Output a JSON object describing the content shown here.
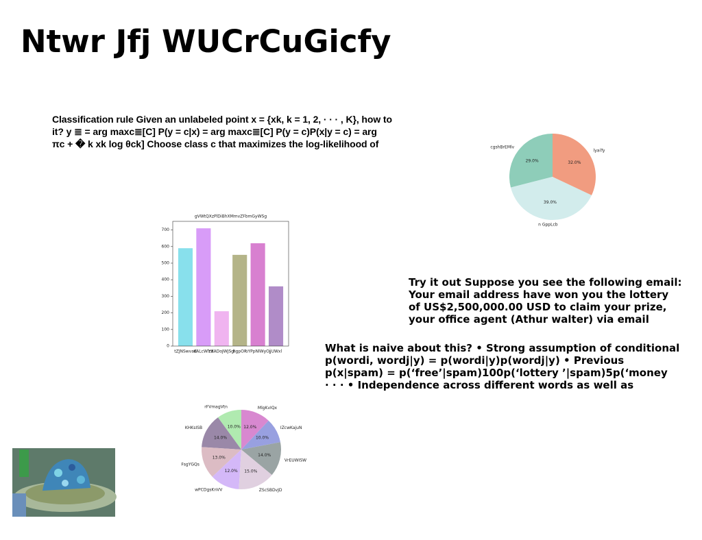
{
  "title": "Ntwr Jfj WUCrCuGicfy",
  "paragraphs": [
    {
      "lines": [
        "Classification rule Given an unlabeled point x = {xk, k = 1, 2, · · · , K}, how to",
        "it? y ≣ = arg maxc≣[C] P(y = c|x) = arg maxc≣[C] P(y = c)P(x|y = c) = arg",
        "πc + � k xk log θck] Choose class c that maximizes the log-likelihood of"
      ]
    },
    {
      "lines": [
        "Try it out Suppose you see the following email:",
        "Your email address have won you the lottery",
        "of US$2,500,000.00 USD to claim your prize,",
        "your office agent (Athur walter) via email"
      ]
    },
    {
      "lines": [
        "What is naive about this? • Strong assumption of conditional",
        "p(wordi, wordj|y) = p(wordi|y)p(wordj|y) • Previous",
        "p(x|spam) = p(‘free’|spam)100p(‘lottery ’|spam)5p(‘money",
        "· · · • Independence across different words as well as"
      ]
    }
  ],
  "chart_data": [
    {
      "type": "pie",
      "categories": [
        "cgshBrEMlv",
        "n GppLcb",
        "lyaiTy"
      ],
      "values": [
        29,
        39,
        32
      ],
      "value_labels": [
        "29.0%",
        "39.0%",
        "32.0%"
      ],
      "colors": [
        "#8ecdb9",
        "#d2ecec",
        "#f19c80"
      ]
    },
    {
      "type": "bar",
      "title": "gVWtQXzPlDiBhXMmvZFbmGyWSg",
      "categories": [
        "tZJNSwvad",
        "KALcWlzd",
        "YXADoJWJSgl",
        "hgpOP",
        "uYPpNlWyOj",
        "jUWxl"
      ],
      "values": [
        590,
        710,
        210,
        550,
        620,
        360
      ],
      "colors": [
        "#88e0ec",
        "#d89cf8",
        "#f0b4f0",
        "#b4b488",
        "#d880d0",
        "#b08cc8"
      ],
      "ylim": [
        0,
        752
      ],
      "yticks": [
        0,
        100,
        200,
        300,
        400,
        500,
        600,
        700
      ]
    },
    {
      "type": "pie",
      "categories": [
        "rFVmagVtn",
        "KHKsISB",
        "FsgYGQs",
        "wPCDgsKnVV",
        "ZScSBDvJD",
        "VrEUWISW",
        "IZcwKajuN",
        "MlgKvIQx"
      ],
      "values": [
        10,
        14,
        13,
        12,
        15,
        14,
        10,
        12
      ],
      "value_labels": [
        "10.0%",
        "14.0%",
        "13.0%",
        "12.0%",
        "15.0%",
        "14.0%",
        "10.0%",
        "12.0%"
      ],
      "colors": [
        "#b0eab0",
        "#9a88a8",
        "#dcbcc4",
        "#d4b8f8",
        "#e0d0e0",
        "#9aa4a4",
        "#98a0e0",
        "#d888d0"
      ]
    }
  ]
}
